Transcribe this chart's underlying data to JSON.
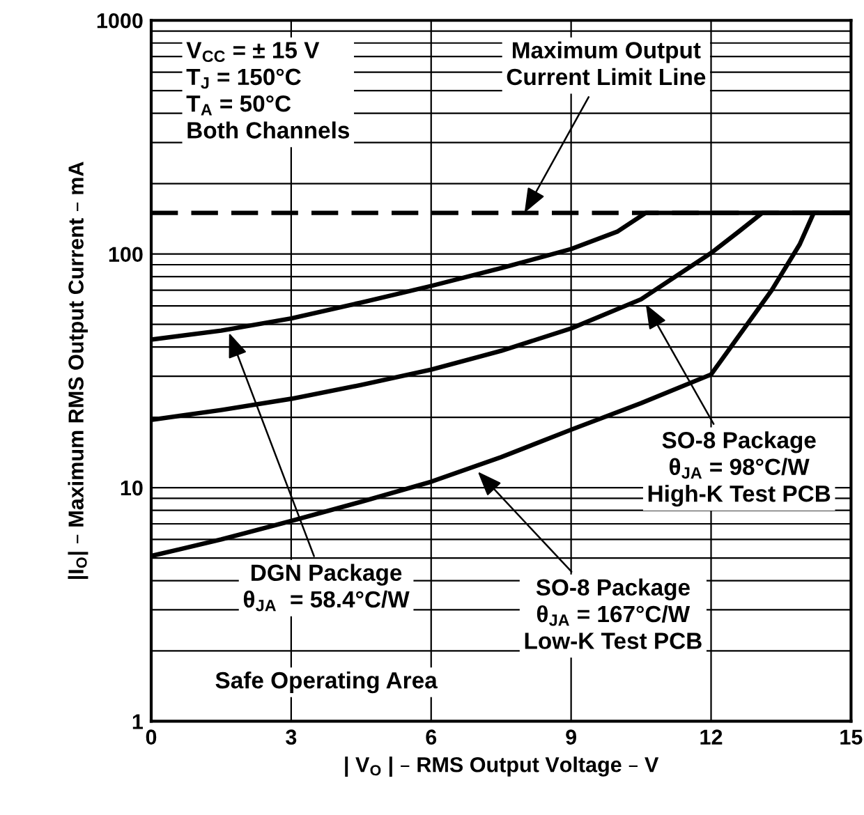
{
  "chart_data": {
    "type": "line",
    "xlabel": "| V$_{O}$ | – RMS Output Voltage – V",
    "ylabel": "|I$_{O}$| – Maximum RMS Output Current – mA",
    "log": "y",
    "xlim": [
      0,
      15
    ],
    "xticks": [
      0,
      3,
      6,
      9,
      12,
      15
    ],
    "ylim": [
      1,
      1000
    ],
    "yticks": [
      1,
      {
        "value": 2,
        "label": null
      },
      {
        "value": 3,
        "label": null
      },
      {
        "value": 4,
        "label": null
      },
      {
        "value": 5,
        "label": null
      },
      {
        "value": 6,
        "label": null
      },
      {
        "value": 7,
        "label": null
      },
      {
        "value": 8,
        "label": null
      },
      {
        "value": 9,
        "label": null
      },
      10,
      {
        "value": 20,
        "label": null
      },
      {
        "value": 30,
        "label": null
      },
      {
        "value": 40,
        "label": null
      },
      {
        "value": 50,
        "label": null
      },
      {
        "value": 60,
        "label": null
      },
      {
        "value": 70,
        "label": null
      },
      {
        "value": 80,
        "label": null
      },
      {
        "value": 90,
        "label": null
      },
      100,
      {
        "value": 200,
        "label": null
      },
      {
        "value": 300,
        "label": null
      },
      {
        "value": 400,
        "label": null
      },
      {
        "value": 500,
        "label": null
      },
      {
        "value": 600,
        "label": null
      },
      {
        "value": 700,
        "label": null
      },
      {
        "value": 800,
        "label": null
      },
      {
        "value": 900,
        "label": null
      },
      1000
    ],
    "grid": true,
    "line_style": "solid",
    "series": [
      {
        "color": "#000000",
        "x": [
          0,
          1.5,
          3,
          4.5,
          6,
          7.5,
          9,
          10,
          10.6,
          15
        ],
        "values": [
          43,
          47,
          53,
          62,
          73,
          87,
          105,
          125,
          150,
          150
        ]
      },
      {
        "color": "#000000",
        "x": [
          0,
          1.5,
          3,
          4.5,
          6,
          7.5,
          9,
          10.5,
          12,
          12.6,
          13.1,
          15
        ],
        "values": [
          19.5,
          21.5,
          24,
          27.5,
          32,
          38.5,
          48,
          64,
          101,
          125,
          150,
          150
        ]
      },
      {
        "color": "#000000",
        "x": [
          0,
          1.5,
          3,
          4.5,
          6,
          7.5,
          9,
          10.5,
          12,
          13.3,
          13.9,
          14.2,
          15
        ],
        "values": [
          5.1,
          6,
          7.2,
          8.7,
          10.6,
          13.5,
          17.7,
          23,
          30.5,
          70,
          110,
          150,
          150
        ]
      }
    ],
    "ref_lines": [
      {
        "axis": "y",
        "value": 150,
        "color": "#000000",
        "line_style": "dashed"
      }
    ],
    "annotations": [
      "V$_{CC}$ = ± 15 V\nT$_{J}$ = 150°C\nT$_{A}$ = 50°C\nBoth Channels",
      {
        "text": "Maximum Output\nCurrent Limit Line",
        "x": 8.0,
        "y": 150
      },
      {
        "text": "SO-8 Package\nθ$_{JA}$ = 98°C/W\nHigh-K Test PCB",
        "x": 10.6,
        "y": 61
      },
      {
        "text": "DGN Package\nθ$_{JA}$  = 58.4°C/W",
        "x": 1.67,
        "y": 46
      },
      {
        "text": "SO-8 Package\nθ$_{JA}$ = 167°C/W\nLow-K Test PCB",
        "x": 7.0,
        "y": 11.7
      },
      "Safe Operating Area"
    ]
  }
}
